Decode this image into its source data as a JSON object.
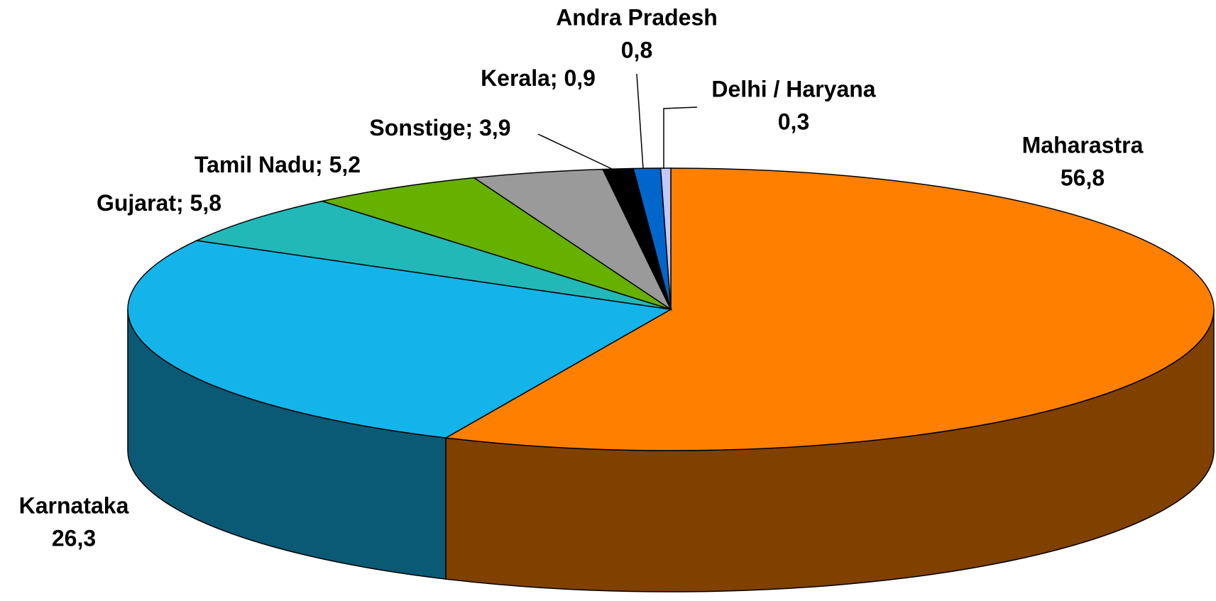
{
  "chart_data": {
    "type": "pie3d",
    "categories": [
      "Maharastra",
      "Karnataka",
      "Gujarat",
      "Tamil Nadu",
      "Sonstige",
      "Kerala",
      "Andra Pradesh",
      "Delhi / Haryana"
    ],
    "values": [
      56.8,
      26.3,
      5.8,
      5.2,
      3.9,
      0.9,
      0.8,
      0.3
    ],
    "value_labels": [
      "56,8",
      "26,3",
      "5,8",
      "5,2",
      "3,9",
      "0,9",
      "0,8",
      "0,3"
    ],
    "label_separator": "; ",
    "colors": [
      "#ff8000",
      "#14b4ea",
      "#22b8b8",
      "#66b000",
      "#9a9a9a",
      "#000000",
      "#0066cc",
      "#c0c8ff"
    ]
  }
}
